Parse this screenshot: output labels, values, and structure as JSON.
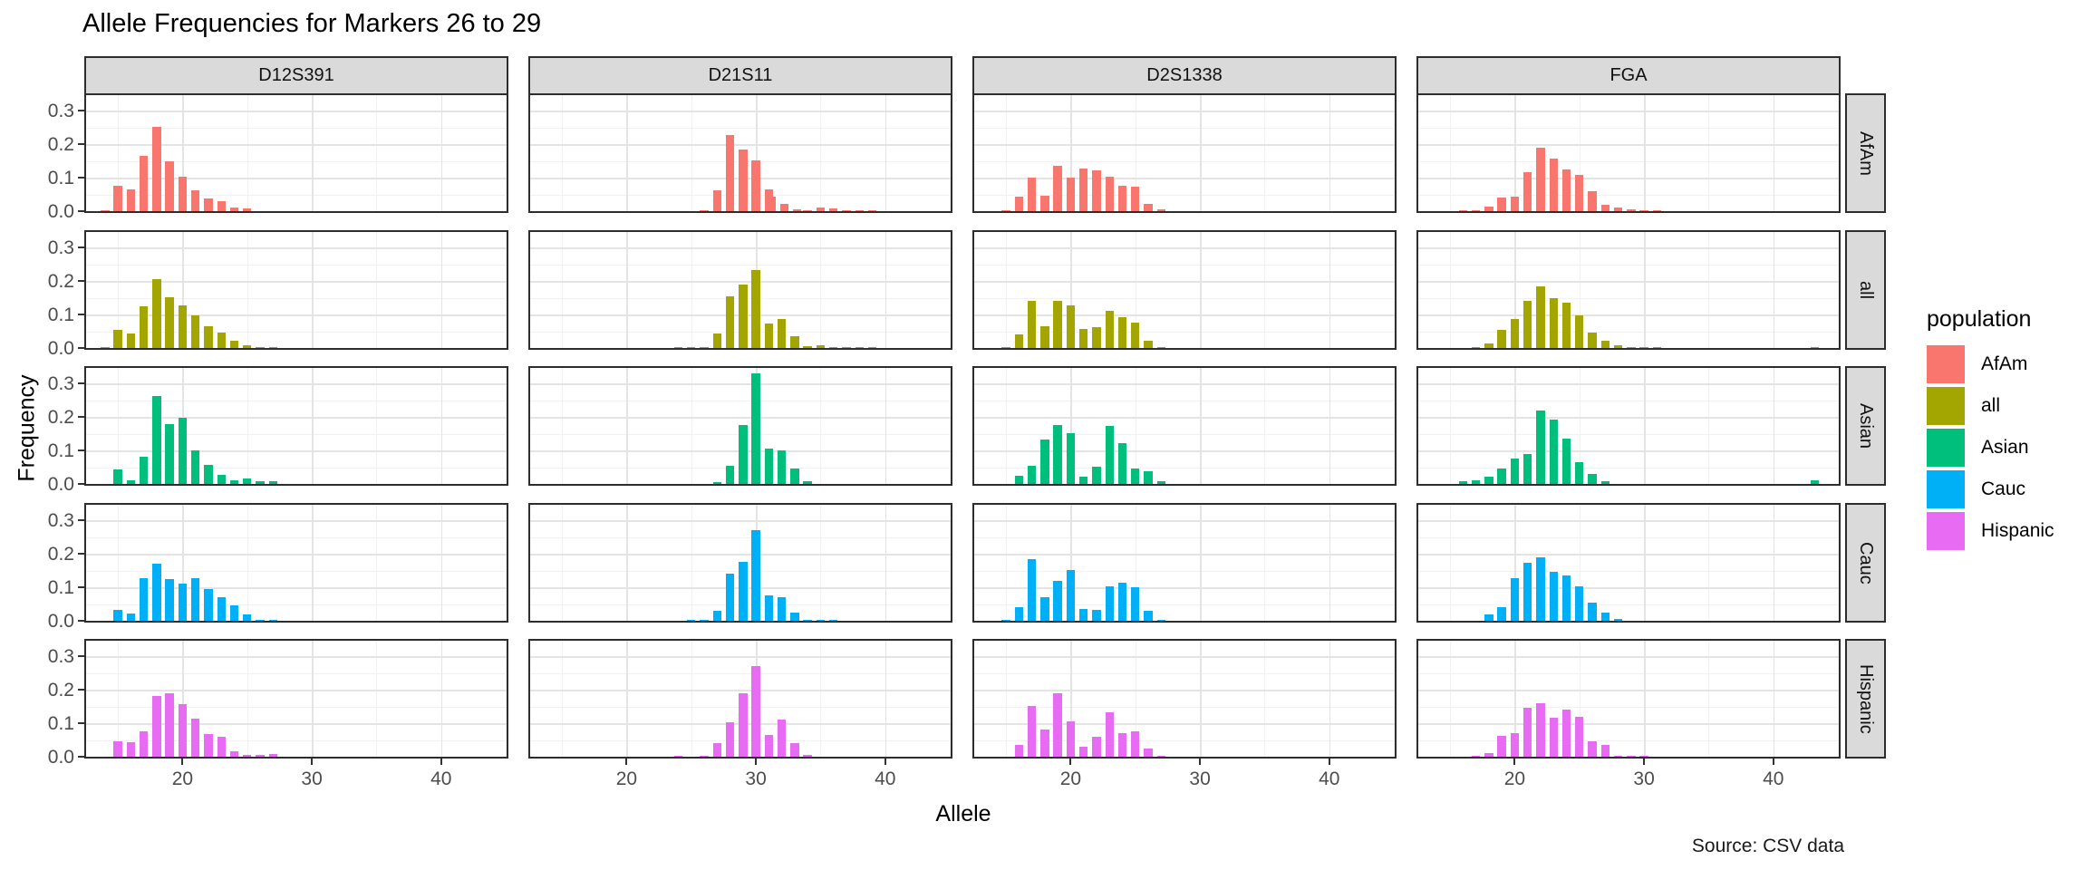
{
  "chart_data": {
    "type": "bar",
    "title": "Allele Frequencies for Markers 26 to 29",
    "xlabel": "Allele",
    "ylabel": "Frequency",
    "caption": "Source: CSV data",
    "legend_title": "population",
    "legend_position": "right",
    "grid": true,
    "facet_columns": [
      "D12S391",
      "D21S11",
      "D2S1338",
      "FGA"
    ],
    "facet_rows": [
      "AfAm",
      "all",
      "Asian",
      "Cauc",
      "Hispanic"
    ],
    "x_ticks": [
      20,
      30,
      40
    ],
    "x_minor_ticks": [
      15,
      25,
      35,
      45
    ],
    "y_ticks": [
      0.0,
      0.1,
      0.2,
      0.3
    ],
    "y_minor_ticks": [
      0.05,
      0.15,
      0.25
    ],
    "x_domain": [
      12.4,
      45.2
    ],
    "y_domain": [
      0,
      0.345
    ],
    "series_colors": {
      "AfAm": "#F8766D",
      "all": "#A3A500",
      "Asian": "#00BF7D",
      "Cauc": "#00B0F6",
      "Hispanic": "#E76BF3"
    },
    "frequencies": {
      "D12S391": {
        "AfAm": {
          "14": 0.003,
          "15": 0.077,
          "16": 0.064,
          "17": 0.165,
          "18": 0.251,
          "19": 0.149,
          "20": 0.104,
          "21": 0.063,
          "22": 0.038,
          "23": 0.029,
          "24": 0.01,
          "25": 0.008
        },
        "all": {
          "14": 0.002,
          "15": 0.053,
          "16": 0.043,
          "17": 0.125,
          "18": 0.206,
          "19": 0.152,
          "20": 0.128,
          "21": 0.097,
          "22": 0.065,
          "23": 0.046,
          "24": 0.022,
          "25": 0.009,
          "26": 0.003,
          "27": 0.003
        },
        "Asian": {
          "15": 0.044,
          "16": 0.012,
          "17": 0.082,
          "18": 0.263,
          "19": 0.178,
          "20": 0.197,
          "21": 0.099,
          "22": 0.057,
          "23": 0.028,
          "24": 0.01,
          "25": 0.015,
          "26": 0.008,
          "27": 0.008
        },
        "Cauc": {
          "15": 0.033,
          "16": 0.022,
          "17": 0.126,
          "18": 0.17,
          "19": 0.123,
          "20": 0.111,
          "21": 0.128,
          "22": 0.095,
          "23": 0.071,
          "24": 0.047,
          "25": 0.018,
          "26": 0.003,
          "27": 0.003
        },
        "Hispanic": {
          "15": 0.047,
          "16": 0.044,
          "17": 0.076,
          "18": 0.18,
          "19": 0.19,
          "20": 0.157,
          "21": 0.113,
          "22": 0.068,
          "23": 0.06,
          "24": 0.015,
          "25": 0.005,
          "26": 0.005,
          "27": 0.007
        }
      },
      "D21S11": {
        "AfAm": {
          "26": 0.003,
          "27": 0.062,
          "28": 0.227,
          "29": 0.185,
          "30": 0.152,
          "31": 0.065,
          "31.2": 0.043,
          "32.2": 0.021,
          "33.2": 0.006,
          "34": 0.004,
          "35": 0.012,
          "36": 0.008,
          "37": 0.003,
          "38": 0.003,
          "39": 0.002
        },
        "all": {
          "24": 0.002,
          "25": 0.002,
          "26": 0.003,
          "27": 0.042,
          "28": 0.155,
          "29": 0.19,
          "30": 0.232,
          "31": 0.074,
          "32": 0.086,
          "33": 0.035,
          "34": 0.005,
          "35": 0.009,
          "36": 0.003,
          "37": 0.002,
          "38": 0.002,
          "39": 0.002
        },
        "Asian": {
          "27": 0.006,
          "28": 0.054,
          "29": 0.175,
          "30": 0.33,
          "31": 0.105,
          "32": 0.101,
          "33": 0.045,
          "34": 0.007
        },
        "Cauc": {
          "25": 0.002,
          "26": 0.003,
          "27": 0.03,
          "28": 0.14,
          "29": 0.176,
          "30": 0.271,
          "31": 0.076,
          "32": 0.07,
          "33": 0.025,
          "34": 0.004,
          "35": 0.003,
          "36": 0.003
        },
        "Hispanic": {
          "24": 0.002,
          "26": 0.003,
          "27": 0.04,
          "28": 0.104,
          "29": 0.19,
          "30": 0.27,
          "31": 0.064,
          "32": 0.11,
          "33": 0.04,
          "34": 0.005
        }
      },
      "D2S1338": {
        "AfAm": {
          "15": 0.003,
          "16": 0.044,
          "17": 0.099,
          "18": 0.045,
          "19": 0.134,
          "20": 0.101,
          "21": 0.126,
          "22": 0.122,
          "23": 0.102,
          "24": 0.076,
          "25": 0.074,
          "26": 0.022,
          "27": 0.005
        },
        "all": {
          "15": 0.002,
          "16": 0.04,
          "17": 0.14,
          "18": 0.065,
          "19": 0.141,
          "20": 0.128,
          "21": 0.058,
          "22": 0.063,
          "23": 0.112,
          "24": 0.091,
          "25": 0.076,
          "26": 0.022,
          "27": 0.004
        },
        "Asian": {
          "16": 0.025,
          "17": 0.055,
          "18": 0.133,
          "19": 0.175,
          "20": 0.152,
          "21": 0.021,
          "22": 0.051,
          "23": 0.172,
          "24": 0.122,
          "25": 0.045,
          "26": 0.039,
          "27": 0.008
        },
        "Cauc": {
          "15": 0.003,
          "16": 0.04,
          "17": 0.185,
          "18": 0.07,
          "19": 0.12,
          "20": 0.152,
          "21": 0.036,
          "22": 0.033,
          "23": 0.104,
          "24": 0.114,
          "25": 0.1,
          "26": 0.03,
          "27": 0.003
        },
        "Hispanic": {
          "16": 0.035,
          "17": 0.151,
          "18": 0.08,
          "19": 0.188,
          "20": 0.105,
          "21": 0.029,
          "22": 0.06,
          "23": 0.132,
          "24": 0.07,
          "25": 0.077,
          "26": 0.025,
          "27": 0.003
        }
      },
      "FGA": {
        "AfAm": {
          "16": 0.002,
          "17": 0.003,
          "18": 0.013,
          "19": 0.041,
          "20": 0.044,
          "21": 0.115,
          "22": 0.189,
          "23": 0.158,
          "24": 0.124,
          "25": 0.108,
          "26": 0.06,
          "27": 0.018,
          "28": 0.01,
          "29": 0.005,
          "30": 0.003,
          "31": 0.002
        },
        "all": {
          "17": 0.002,
          "18": 0.013,
          "19": 0.055,
          "20": 0.086,
          "21": 0.141,
          "22": 0.185,
          "23": 0.148,
          "24": 0.136,
          "25": 0.097,
          "26": 0.045,
          "27": 0.021,
          "28": 0.009,
          "29": 0.004,
          "30": 0.003,
          "31": 0.002,
          "43.2": 0.002
        },
        "Asian": {
          "16": 0.008,
          "17": 0.012,
          "18": 0.022,
          "19": 0.045,
          "20": 0.075,
          "21": 0.09,
          "22": 0.22,
          "23": 0.191,
          "24": 0.134,
          "25": 0.066,
          "26": 0.03,
          "27": 0.008,
          "43.2": 0.012
        },
        "Cauc": {
          "18": 0.018,
          "19": 0.04,
          "20": 0.126,
          "21": 0.172,
          "22": 0.189,
          "23": 0.147,
          "24": 0.136,
          "25": 0.103,
          "26": 0.055,
          "27": 0.025,
          "28": 0.005
        },
        "Hispanic": {
          "17": 0.003,
          "18": 0.012,
          "19": 0.063,
          "20": 0.071,
          "21": 0.146,
          "22": 0.16,
          "23": 0.117,
          "24": 0.14,
          "25": 0.118,
          "26": 0.047,
          "27": 0.036,
          "28": 0.003,
          "29": 0.002,
          "30": 0.002
        }
      }
    }
  },
  "style": {
    "strip_fill": "#DADADA",
    "panel_border": "#2D2D2D",
    "grid_major": "#E4E4E4",
    "grid_minor": "#F1F1F1",
    "tick_color": "#333333",
    "tick_label_color": "#4D4D4D"
  }
}
